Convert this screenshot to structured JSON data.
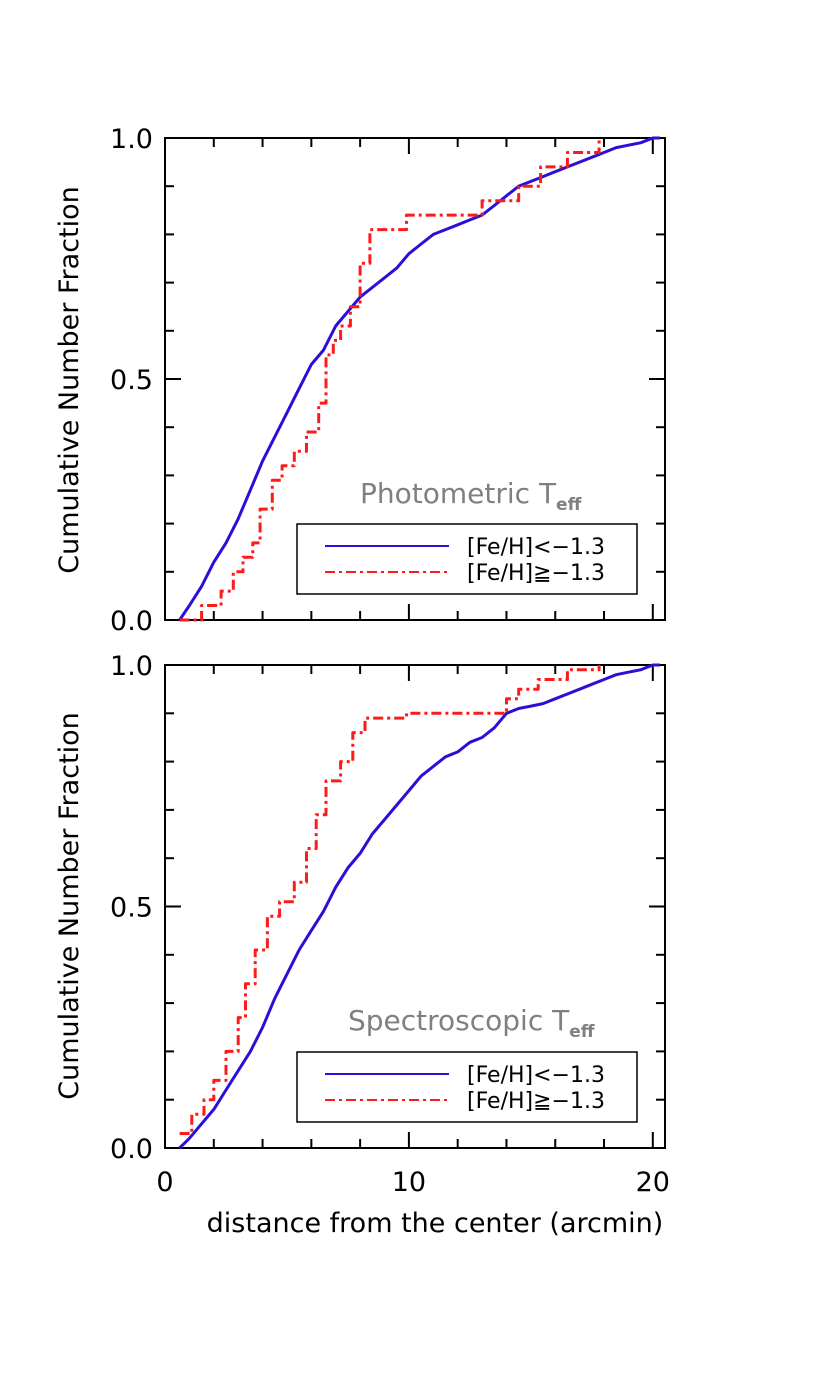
{
  "chart_data": [
    {
      "type": "line",
      "annotation": {
        "main": "Photometric T",
        "sub": "eff"
      },
      "xlabel": "",
      "ylabel": "Cumulative Number Fraction",
      "xlim": [
        0,
        20.5
      ],
      "ylim": [
        0,
        1.0
      ],
      "x_ticks": [],
      "y_ticks": [
        "0.0",
        "0.5",
        "1.0"
      ],
      "legend_position": "lower-right",
      "series": [
        {
          "name": "[Fe/H]<−1.3",
          "color": "#2a10d6",
          "style": "solid",
          "x": [
            0.6,
            1.0,
            1.5,
            2.0,
            2.5,
            3.0,
            3.5,
            4.0,
            4.5,
            5.0,
            5.5,
            6.0,
            6.5,
            7.0,
            7.5,
            8.0,
            8.5,
            9.0,
            9.5,
            10.0,
            10.5,
            11.0,
            11.5,
            12.0,
            12.5,
            13.0,
            13.5,
            14.0,
            14.5,
            15.0,
            15.5,
            16.0,
            16.5,
            17.0,
            17.5,
            18.0,
            18.5,
            19.0,
            19.5,
            20.0,
            20.3
          ],
          "y": [
            0.0,
            0.03,
            0.07,
            0.12,
            0.16,
            0.21,
            0.27,
            0.33,
            0.38,
            0.43,
            0.48,
            0.53,
            0.56,
            0.61,
            0.64,
            0.67,
            0.69,
            0.71,
            0.73,
            0.76,
            0.78,
            0.8,
            0.81,
            0.82,
            0.83,
            0.84,
            0.86,
            0.88,
            0.9,
            0.91,
            0.92,
            0.93,
            0.94,
            0.95,
            0.96,
            0.97,
            0.98,
            0.985,
            0.99,
            1.0,
            1.0
          ]
        },
        {
          "name": "[Fe/H]≧−1.3",
          "color": "#ff1a1a",
          "style": "dashdot",
          "x": [
            0.6,
            1.5,
            1.5,
            2.3,
            2.3,
            2.8,
            2.8,
            3.2,
            3.2,
            3.6,
            3.6,
            3.9,
            3.9,
            4.4,
            4.4,
            4.8,
            4.8,
            5.3,
            5.3,
            5.8,
            5.8,
            6.3,
            6.3,
            6.6,
            6.6,
            6.9,
            6.9,
            7.2,
            7.2,
            7.6,
            7.6,
            8.0,
            8.0,
            8.4,
            8.4,
            9.3,
            9.3,
            9.6,
            9.6,
            9.9,
            9.9,
            10.4,
            10.4,
            11.2,
            11.2,
            13.0,
            13.0,
            14.0,
            14.0,
            14.5,
            14.5,
            15.0,
            15.0,
            15.4,
            15.4,
            16.0,
            16.0,
            16.5,
            16.5,
            16.9,
            16.9,
            17.3,
            17.3,
            17.8,
            17.8
          ],
          "y": [
            0.0,
            0.0,
            0.03,
            0.03,
            0.06,
            0.06,
            0.1,
            0.1,
            0.13,
            0.13,
            0.16,
            0.16,
            0.23,
            0.23,
            0.29,
            0.29,
            0.32,
            0.32,
            0.35,
            0.35,
            0.39,
            0.39,
            0.45,
            0.45,
            0.55,
            0.55,
            0.58,
            0.58,
            0.61,
            0.61,
            0.65,
            0.65,
            0.74,
            0.74,
            0.81,
            0.81,
            0.81,
            0.81,
            0.81,
            0.81,
            0.84,
            0.84,
            0.84,
            0.84,
            0.84,
            0.84,
            0.87,
            0.87,
            0.87,
            0.87,
            0.9,
            0.9,
            0.9,
            0.9,
            0.94,
            0.94,
            0.94,
            0.94,
            0.97,
            0.97,
            0.97,
            0.97,
            0.97,
            0.97,
            1.0
          ]
        }
      ]
    },
    {
      "type": "line",
      "annotation": {
        "main": "Spectroscopic T",
        "sub": "eff"
      },
      "xlabel": "distance from the center (arcmin)",
      "ylabel": "Cumulative Number Fraction",
      "xlim": [
        0,
        20.5
      ],
      "ylim": [
        0,
        1.0
      ],
      "x_ticks": [
        "0",
        "10",
        "20"
      ],
      "y_ticks": [
        "0.0",
        "0.5",
        "1.0"
      ],
      "legend_position": "lower-right",
      "series": [
        {
          "name": "[Fe/H]<−1.3",
          "color": "#2a10d6",
          "style": "solid",
          "x": [
            0.6,
            1.0,
            1.5,
            2.0,
            2.5,
            3.0,
            3.5,
            4.0,
            4.5,
            5.0,
            5.5,
            6.0,
            6.5,
            7.0,
            7.5,
            8.0,
            8.5,
            9.0,
            9.5,
            10.0,
            10.5,
            11.0,
            11.5,
            12.0,
            12.5,
            13.0,
            13.5,
            14.0,
            14.5,
            15.0,
            15.5,
            16.0,
            16.5,
            17.0,
            17.5,
            18.0,
            18.5,
            19.0,
            19.5,
            20.0,
            20.3
          ],
          "y": [
            0.0,
            0.02,
            0.05,
            0.08,
            0.12,
            0.16,
            0.2,
            0.25,
            0.31,
            0.36,
            0.41,
            0.45,
            0.49,
            0.54,
            0.58,
            0.61,
            0.65,
            0.68,
            0.71,
            0.74,
            0.77,
            0.79,
            0.81,
            0.82,
            0.84,
            0.85,
            0.87,
            0.9,
            0.91,
            0.915,
            0.92,
            0.93,
            0.94,
            0.95,
            0.96,
            0.97,
            0.98,
            0.985,
            0.99,
            1.0,
            1.0
          ]
        },
        {
          "name": "[Fe/H]≧−1.3",
          "color": "#ff1a1a",
          "style": "dashdot",
          "x": [
            0.6,
            1.1,
            1.1,
            1.6,
            1.6,
            2.0,
            2.0,
            2.5,
            2.5,
            3.0,
            3.0,
            3.3,
            3.3,
            3.7,
            3.7,
            4.2,
            4.2,
            4.7,
            4.7,
            5.3,
            5.3,
            5.8,
            5.8,
            6.2,
            6.2,
            6.6,
            6.6,
            7.2,
            7.2,
            7.7,
            7.7,
            8.2,
            8.2,
            9.9,
            9.9,
            11.0,
            11.0,
            14.0,
            14.0,
            14.5,
            14.5,
            15.3,
            15.3,
            16.5,
            16.5,
            17.8,
            17.8
          ],
          "y": [
            0.03,
            0.03,
            0.07,
            0.07,
            0.1,
            0.1,
            0.14,
            0.14,
            0.2,
            0.2,
            0.27,
            0.27,
            0.34,
            0.34,
            0.41,
            0.41,
            0.48,
            0.48,
            0.51,
            0.51,
            0.55,
            0.55,
            0.62,
            0.62,
            0.69,
            0.69,
            0.76,
            0.76,
            0.8,
            0.8,
            0.86,
            0.86,
            0.89,
            0.89,
            0.9,
            0.9,
            0.9,
            0.9,
            0.93,
            0.93,
            0.95,
            0.95,
            0.97,
            0.97,
            0.99,
            0.99,
            1.0
          ]
        }
      ]
    }
  ]
}
